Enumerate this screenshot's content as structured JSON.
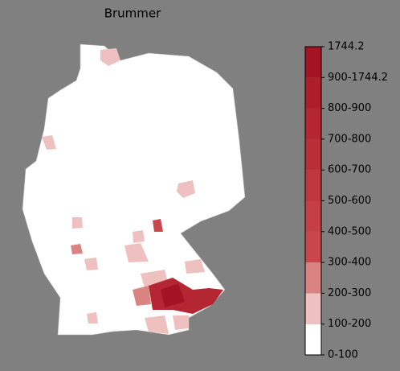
{
  "chart_data": {
    "type": "choropleth",
    "title": "Brummer",
    "colorbar": {
      "labels": [
        "0-100",
        "100-200",
        "200-300",
        "300-400",
        "400-500",
        "500-600",
        "600-700",
        "700-800",
        "800-900",
        "900-1744.2",
        "1744.2"
      ],
      "colors": [
        "#ffffff",
        "#efc0c0",
        "#da8383",
        "#c9474b",
        "#c53f44",
        "#c0363e",
        "#ba2e37",
        "#b42631",
        "#ad1d2a",
        "#a21323"
      ]
    }
  }
}
